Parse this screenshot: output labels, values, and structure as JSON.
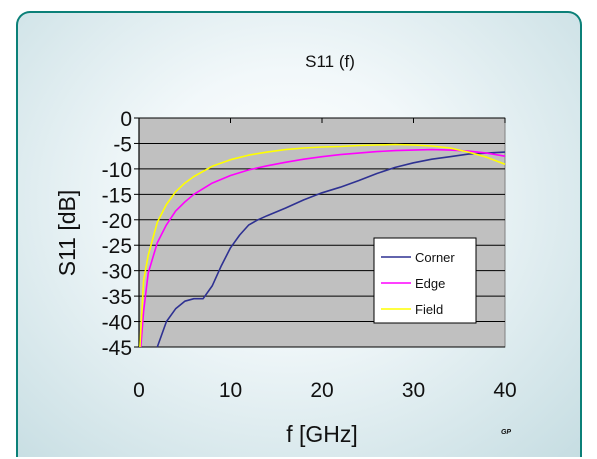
{
  "chart_data": {
    "type": "line",
    "title": "S11 (f)",
    "xlabel": "f [GHz]",
    "ylabel": "S11 [dB]",
    "xlim": [
      0,
      40
    ],
    "ylim": [
      -45,
      0
    ],
    "xticks": [
      "0",
      "10",
      "20",
      "30",
      "40"
    ],
    "yticks": [
      "0",
      "-5",
      "-10",
      "-15",
      "-20",
      "-25",
      "-30",
      "-35",
      "-40",
      "-45"
    ],
    "grid": "horizontal",
    "legend_position": "bottom-right",
    "series": [
      {
        "name": "Corner",
        "color": "#2e3192",
        "x": [
          2,
          3,
          4,
          5,
          6,
          7,
          8,
          9,
          10,
          11,
          12,
          13,
          14,
          16,
          18,
          20,
          22,
          24,
          26,
          28,
          30,
          32,
          34,
          36,
          38,
          40
        ],
        "y": [
          -45,
          -40,
          -37.5,
          -36,
          -35.5,
          -35.5,
          -33,
          -29,
          -25.5,
          -23,
          -21,
          -20,
          -19.2,
          -17.7,
          -16.1,
          -14.7,
          -13.6,
          -12.3,
          -10.9,
          -9.7,
          -8.8,
          -8.1,
          -7.6,
          -7.1,
          -6.9,
          -6.7
        ]
      },
      {
        "name": "Edge",
        "color": "#ff00ff",
        "x": [
          0.2,
          0.5,
          1,
          2,
          3,
          4,
          5,
          6,
          8,
          10,
          12,
          14,
          16,
          18,
          20,
          22,
          24,
          26,
          28,
          30,
          32,
          34,
          36,
          38,
          40
        ],
        "y": [
          -45,
          -38,
          -30.5,
          -24.5,
          -21,
          -18.3,
          -16.5,
          -15,
          -12.8,
          -11.3,
          -10.2,
          -9.4,
          -8.7,
          -8.1,
          -7.6,
          -7.2,
          -6.9,
          -6.6,
          -6.4,
          -6.3,
          -6.2,
          -6.3,
          -6.5,
          -6.9,
          -7.5
        ]
      },
      {
        "name": "Field",
        "color": "#ffff00",
        "x": [
          0.1,
          0.5,
          1,
          2,
          3,
          4,
          5,
          6,
          8,
          10,
          12,
          14,
          16,
          18,
          20,
          22,
          24,
          26,
          28,
          30,
          32,
          34,
          36,
          38,
          40
        ],
        "y": [
          -45,
          -32,
          -27,
          -20.5,
          -17,
          -14.5,
          -12.8,
          -11.5,
          -9.5,
          -8.2,
          -7.3,
          -6.7,
          -6.2,
          -5.9,
          -5.7,
          -5.6,
          -5.4,
          -5.3,
          -5.2,
          -5.3,
          -5.5,
          -5.9,
          -6.7,
          -7.7,
          -9.1
        ]
      }
    ]
  },
  "watermark": "GP"
}
